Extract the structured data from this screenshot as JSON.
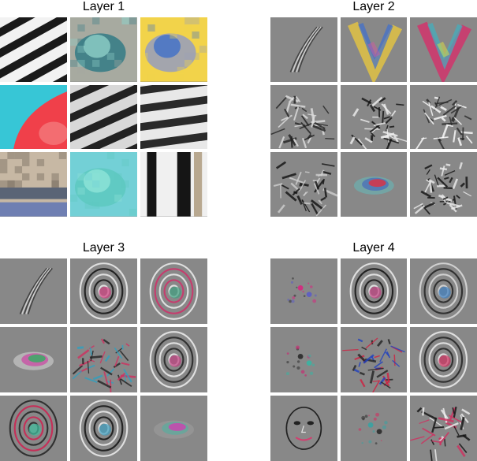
{
  "figure": {
    "panels": [
      {
        "title": "Layer 1",
        "background": "#888888",
        "cells": [
          {
            "kind": "stripes",
            "icon": "black-white-diagonal-stripes",
            "colors": [
              "#f2f2f2",
              "#1a1a1a"
            ],
            "angle": -30
          },
          {
            "kind": "blob",
            "icon": "teal-gray-blob",
            "colors": [
              "#3a7d86",
              "#8fd0c8",
              "#a7aaa0"
            ]
          },
          {
            "kind": "blob",
            "icon": "blue-yellow-patch",
            "colors": [
              "#9aa0b8",
              "#3e6fc8",
              "#f2d34a"
            ]
          },
          {
            "kind": "split",
            "icon": "cyan-red-split",
            "colors": [
              "#37c6d6",
              "#f0404a",
              "#f58c8c"
            ]
          },
          {
            "kind": "stripes",
            "icon": "gray-black-diagonal-stripes",
            "colors": [
              "#d8d8d8",
              "#222222"
            ],
            "angle": -25
          },
          {
            "kind": "stripes",
            "icon": "black-white-horizontal-stripes",
            "colors": [
              "#e8e8e8",
              "#2a2a2a"
            ],
            "angle": -8
          },
          {
            "kind": "bands",
            "icon": "beige-blue-horizontal-bands",
            "colors": [
              "#c7b8a4",
              "#5a6476",
              "#6f7fb2"
            ]
          },
          {
            "kind": "blob",
            "icon": "aqua-mottled-patch",
            "colors": [
              "#5ec9c1",
              "#8ee3d8",
              "#73d0d6"
            ]
          },
          {
            "kind": "vbars",
            "icon": "black-white-vertical-bars",
            "colors": [
              "#f0f0f0",
              "#151515",
              "#b8a890"
            ]
          }
        ]
      },
      {
        "title": "Layer 2",
        "background": "#888888",
        "cells": [
          {
            "kind": "stroke",
            "icon": "curved-stroke",
            "colors": [
              "#333333",
              "#dddddd"
            ]
          },
          {
            "kind": "vshape",
            "icon": "yellow-blue-v-shape",
            "colors": [
              "#e6c640",
              "#3f6fd0",
              "#d05aa0"
            ]
          },
          {
            "kind": "vshape",
            "icon": "magenta-v-shape",
            "colors": [
              "#d6306a",
              "#40b0c0",
              "#e0e040"
            ]
          },
          {
            "kind": "texture",
            "icon": "textured-circle",
            "colors": [
              "#222222",
              "#e0e0e0"
            ]
          },
          {
            "kind": "texture",
            "icon": "horizontal-bar-texture",
            "colors": [
              "#111111",
              "#f0f0f0"
            ]
          },
          {
            "kind": "texture",
            "icon": "diagonal-line-texture",
            "colors": [
              "#2a2a2a",
              "#ffffff"
            ]
          },
          {
            "kind": "texture",
            "icon": "dark-blob-texture",
            "colors": [
              "#111111",
              "#d0d0d0"
            ]
          },
          {
            "kind": "smear",
            "icon": "red-blue-smear",
            "colors": [
              "#e03040",
              "#4060c0",
              "#60c0c0"
            ]
          },
          {
            "kind": "texture",
            "icon": "comb-texture",
            "colors": [
              "#111111",
              "#eeeeee"
            ]
          }
        ]
      },
      {
        "title": "Layer 3",
        "background": "#888888",
        "cells": [
          {
            "kind": "stroke",
            "icon": "diagonal-stroke",
            "colors": [
              "#333333",
              "#dddddd"
            ]
          },
          {
            "kind": "rings",
            "icon": "concentric-rings",
            "colors": [
              "#111111",
              "#eeeeee",
              "#d04080"
            ]
          },
          {
            "kind": "rings",
            "icon": "pink-ring-pattern",
            "colors": [
              "#d0306a",
              "#eeeeee",
              "#40a080"
            ]
          },
          {
            "kind": "smear",
            "icon": "green-magenta-blob",
            "colors": [
              "#30b060",
              "#d030a0",
              "#e0e0e0"
            ]
          },
          {
            "kind": "texture",
            "icon": "colorful-texture",
            "colors": [
              "#d03060",
              "#30a0c0",
              "#222222"
            ]
          },
          {
            "kind": "rings",
            "icon": "u-shape-pattern",
            "colors": [
              "#222222",
              "#f0f0f0",
              "#c04080"
            ]
          },
          {
            "kind": "rings",
            "icon": "red-oval-blob",
            "colors": [
              "#d02050",
              "#222222",
              "#40c0a0"
            ]
          },
          {
            "kind": "rings",
            "icon": "swirl-rings",
            "colors": [
              "#111111",
              "#eeeeee",
              "#40a0c0"
            ]
          },
          {
            "kind": "smear",
            "icon": "magenta-soft-blob",
            "colors": [
              "#d040b0",
              "#50b0a0",
              "#a0a0a0"
            ]
          }
        ]
      },
      {
        "title": "Layer 4",
        "background": "#888888",
        "cells": [
          {
            "kind": "dots",
            "icon": "small-eyes-pattern",
            "colors": [
              "#333333",
              "#d03080",
              "#6060c0"
            ]
          },
          {
            "kind": "rings",
            "icon": "eye-rings",
            "colors": [
              "#111111",
              "#eeeeee",
              "#c04080"
            ]
          },
          {
            "kind": "rings",
            "icon": "spiral-texture",
            "colors": [
              "#222222",
              "#dddddd",
              "#4080c0"
            ]
          },
          {
            "kind": "dots",
            "icon": "pink-dot",
            "colors": [
              "#d02070",
              "#333333",
              "#40b0a0"
            ]
          },
          {
            "kind": "texture",
            "icon": "red-line-texture",
            "colors": [
              "#d02040",
              "#2040c0",
              "#222222"
            ]
          },
          {
            "kind": "rings",
            "icon": "dog-face-pattern",
            "colors": [
              "#222222",
              "#eeeeee",
              "#d03060"
            ]
          },
          {
            "kind": "face",
            "icon": "face-pattern",
            "colors": [
              "#222222",
              "#e0e0e0",
              "#d04070"
            ]
          },
          {
            "kind": "dots",
            "icon": "faint-blob",
            "colors": [
              "#d03060",
              "#40a0a0",
              "#333333"
            ]
          },
          {
            "kind": "texture",
            "icon": "bird-texture",
            "colors": [
              "#111111",
              "#f0f0f0",
              "#d03060"
            ]
          }
        ]
      }
    ]
  }
}
